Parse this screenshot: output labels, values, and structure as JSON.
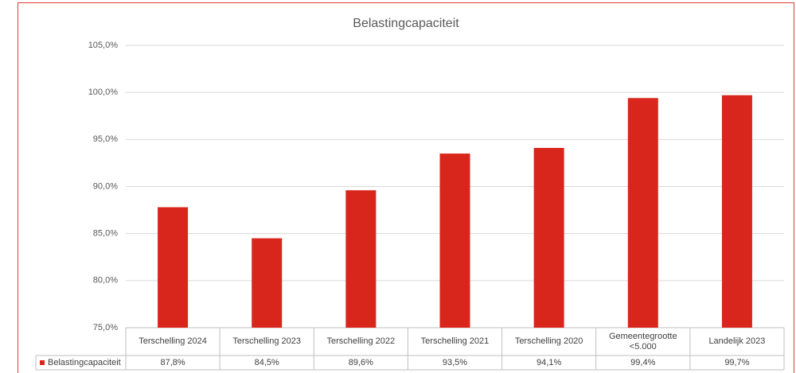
{
  "chart_data": {
    "type": "bar",
    "title": "Belastingcapaciteit",
    "categories": [
      "Terschelling 2024",
      "Terschelling 2023",
      "Terschelling 2022",
      "Terschelling 2021",
      "Terschelling 2020",
      "Gemeentegrootte <5.000",
      "Landelijk 2023"
    ],
    "series": [
      {
        "name": "Belastingcapaciteit",
        "color": "#d9261c",
        "values": [
          87.8,
          84.5,
          89.6,
          93.5,
          94.1,
          99.4,
          99.7
        ],
        "value_labels": [
          "87,8%",
          "84,5%",
          "89,6%",
          "93,5%",
          "94,1%",
          "99,4%",
          "99,7%"
        ]
      }
    ],
    "ylim": [
      75,
      105
    ],
    "yticks": [
      {
        "value": 75,
        "label": "75,0%"
      },
      {
        "value": 80,
        "label": "80,0%"
      },
      {
        "value": 85,
        "label": "85,0%"
      },
      {
        "value": 90,
        "label": "90,0%"
      },
      {
        "value": 95,
        "label": "95,0%"
      },
      {
        "value": 100,
        "label": "100,0%"
      },
      {
        "value": 105,
        "label": "105,0%"
      }
    ],
    "grid": true
  }
}
